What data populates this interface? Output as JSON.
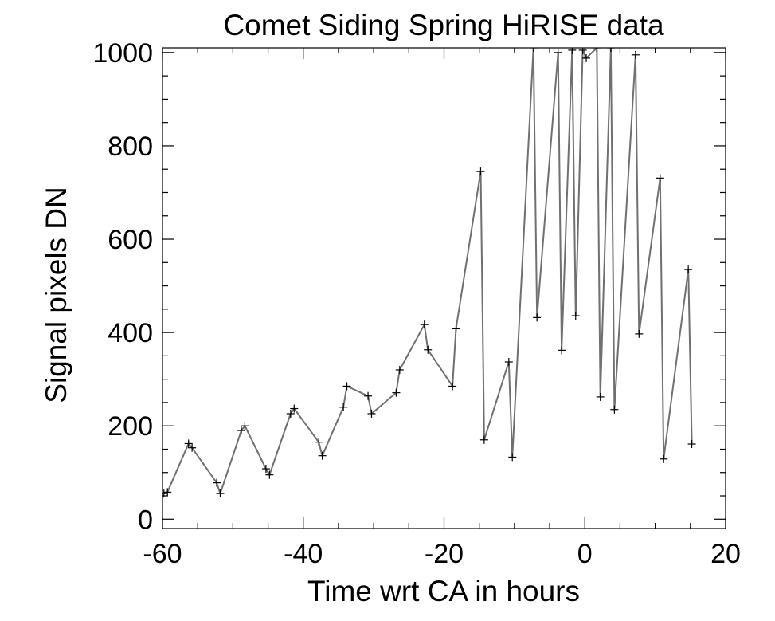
{
  "chart_data": {
    "type": "line",
    "title": "Comet Siding Spring HiRISE data",
    "xlabel": "Time wrt CA in hours",
    "ylabel": "Signal pixels DN",
    "xlim": [
      -60,
      20
    ],
    "ylim": [
      -20,
      1010
    ],
    "xticks": [
      -60,
      -40,
      -20,
      0,
      20
    ],
    "yticks": [
      0,
      200,
      400,
      600,
      800,
      1000
    ],
    "x_minor_step": 5,
    "y_minor_step": 50,
    "grid": false,
    "marker": "plus",
    "line_color": "#707070",
    "marker_color": "#000000",
    "series": [
      {
        "x": [
          -59.8,
          -59.3,
          -56.3,
          -55.8,
          -52.3,
          -51.8,
          -48.8,
          -48.3,
          -45.3,
          -44.8,
          -41.8,
          -41.3,
          -37.8,
          -37.3,
          -34.3,
          -33.8,
          -30.8,
          -30.3,
          -26.8,
          -26.3,
          -22.8,
          -22.3,
          -18.8,
          -18.3,
          -14.8,
          -14.3,
          -10.8,
          -10.3,
          -7.3,
          -6.8,
          -3.8,
          -3.3,
          -1.8,
          -1.3,
          -0.3,
          0.2,
          1.7,
          2.2,
          3.7,
          4.2,
          7.2,
          7.7,
          10.7,
          11.2,
          14.7,
          15.2
        ],
        "y": [
          55,
          58,
          162,
          153,
          78,
          55,
          190,
          200,
          108,
          95,
          226,
          237,
          165,
          136,
          240,
          285,
          264,
          226,
          271,
          320,
          417,
          363,
          285,
          408,
          745,
          170,
          337,
          133,
          1010,
          432,
          1000,
          362,
          1005,
          436,
          1005,
          988,
          1010,
          262,
          1010,
          235,
          995,
          397,
          731,
          129,
          535,
          161
        ]
      }
    ]
  }
}
